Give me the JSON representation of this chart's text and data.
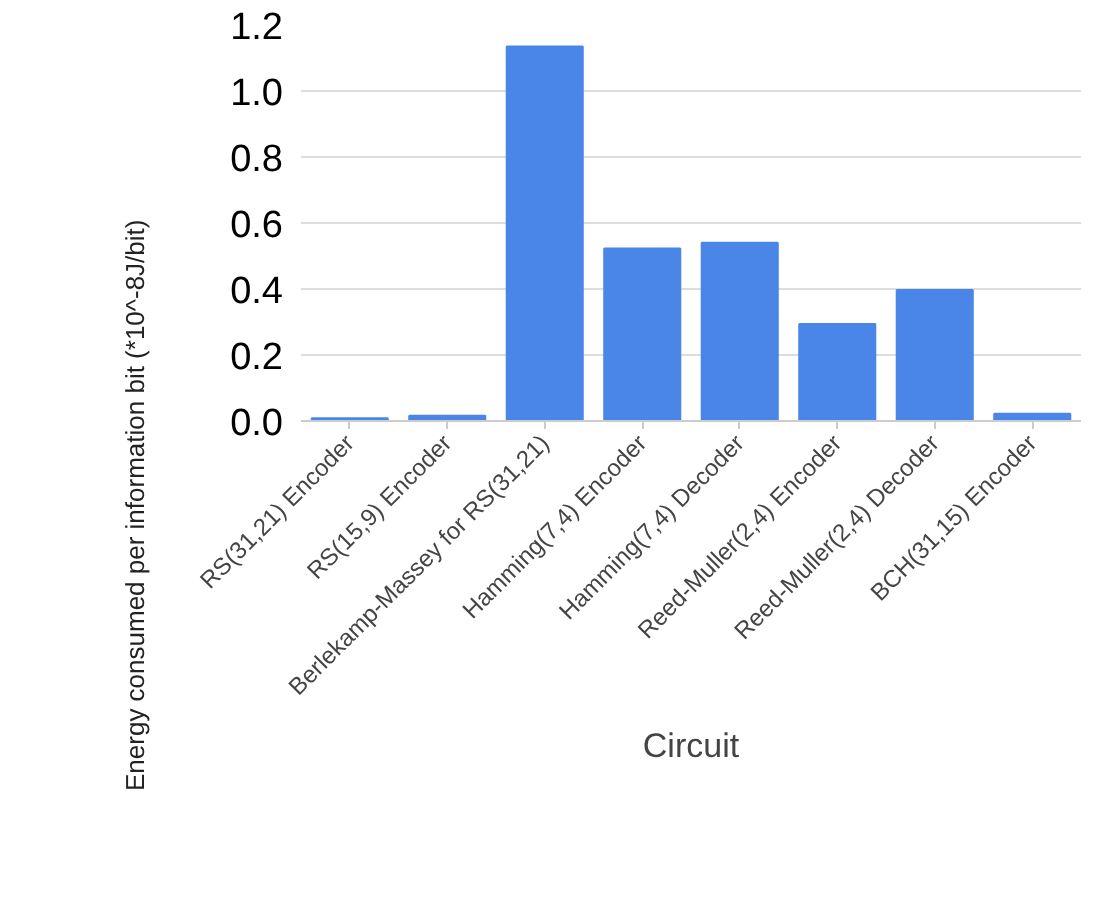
{
  "chart_data": {
    "type": "bar",
    "xlabel": "Circuit",
    "ylabel": "Energy consumed per information bit (*10^-8J/bit)",
    "categories": [
      "RS(31,21) Encoder",
      "RS(15,9) Encoder",
      "Berlekamp-Massey for RS(31,21)",
      "Hamming(7,4) Encoder",
      "Hamming(7,4) Decoder",
      "Reed-Muller(2,4) Encoder",
      "Reed-Muller(2,4) Decoder",
      "BCH(31,15) Encoder"
    ],
    "values": [
      0.008,
      0.016,
      1.135,
      0.523,
      0.54,
      0.294,
      0.397,
      0.022
    ],
    "color": "#4a86e8",
    "ylim": [
      0,
      1.2
    ],
    "yticks": [
      {
        "value": 0,
        "label": "0.0"
      },
      {
        "value": 0.2,
        "label": "0.2"
      },
      {
        "value": 0.4,
        "label": "0.4"
      },
      {
        "value": 0.6,
        "label": "0.6"
      },
      {
        "value": 0.8,
        "label": "0.8"
      },
      {
        "value": 1.0,
        "label": "1.0"
      },
      {
        "value": 1.2,
        "label": "1.2"
      }
    ],
    "grid": "y"
  }
}
